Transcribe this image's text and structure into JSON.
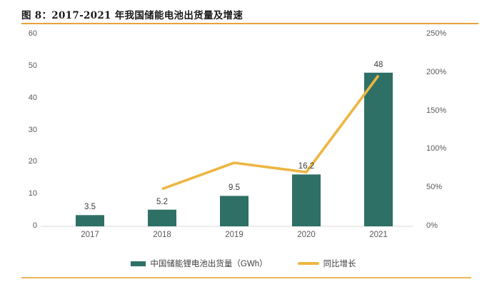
{
  "figure": {
    "title": "图 8：2017-2021 年我国储能电池出货量及增速",
    "accent_rule_color": "#E9A23B",
    "bottom_rule_color": "#EDB757"
  },
  "chart_data": {
    "type": "combo-bar-line",
    "title": "图 8：2017-2021 年我国储能电池出货量及增速",
    "categories": [
      "2017",
      "2018",
      "2019",
      "2020",
      "2021"
    ],
    "series": [
      {
        "name": "中国储能锂电池出货量（GWh）",
        "type": "bar",
        "axis": "left",
        "values": [
          3.5,
          5.2,
          9.5,
          16.2,
          48
        ],
        "labels": [
          "3.5",
          "5.2",
          "9.5",
          "16.2",
          "48"
        ],
        "color": "#2E7065"
      },
      {
        "name": "同比增长",
        "type": "line",
        "axis": "right",
        "values_pct": [
          null,
          48.6,
          82.7,
          70.5,
          196.3
        ],
        "color": "#EDB642"
      }
    ],
    "left_axis": {
      "min": 0,
      "max": 60,
      "tick_step": 10,
      "ticks": [
        "60",
        "50",
        "40",
        "30",
        "20",
        "10",
        "0"
      ]
    },
    "right_axis": {
      "min_pct": 0,
      "max_pct": 250,
      "tick_step_pct": 50,
      "ticks": [
        "250%",
        "200%",
        "150%",
        "100%",
        "50%",
        "0%"
      ]
    },
    "grid": false,
    "axis_line_color": "#D9D9D9",
    "tick_color": "#595959",
    "legend": {
      "position": "bottom",
      "items": [
        {
          "label": "中国储能锂电池出货量（GWh）",
          "marker": "bar",
          "color": "#2E7065"
        },
        {
          "label": "同比增长",
          "marker": "line",
          "color": "#EDB642"
        }
      ]
    }
  }
}
